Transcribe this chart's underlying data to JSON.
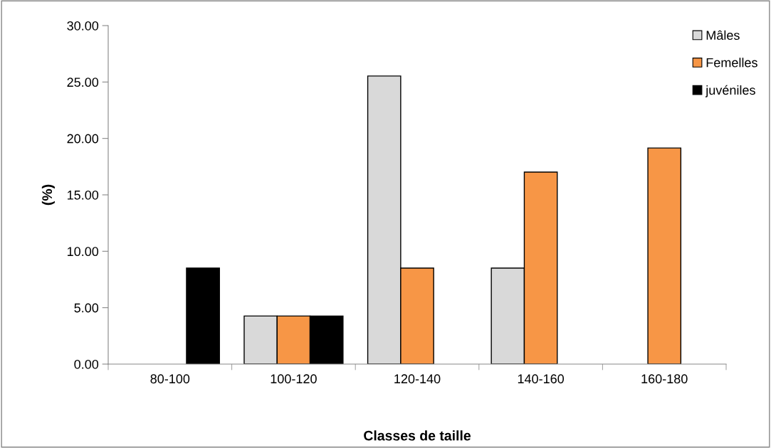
{
  "chart_data": {
    "type": "bar",
    "xlabel": "Classes de taille",
    "ylabel": "(%)",
    "categories": [
      "80-100",
      "100-120",
      "120-140",
      "140-160",
      "160-180"
    ],
    "series": [
      {
        "name": "Mâles",
        "color": "#d9d9d9",
        "values": [
          null,
          4.26,
          25.53,
          8.51,
          null
        ]
      },
      {
        "name": "Femelles",
        "color": "#f79646",
        "values": [
          null,
          4.26,
          8.51,
          17.02,
          19.15
        ]
      },
      {
        "name": "juvéniles",
        "color": "#000000",
        "values": [
          8.51,
          4.26,
          null,
          null,
          null
        ]
      }
    ],
    "ylim": [
      0,
      30
    ],
    "yticks": [
      {
        "value": 0,
        "label": "0.00"
      },
      {
        "value": 5,
        "label": "5.00"
      },
      {
        "value": 10,
        "label": "10.00"
      },
      {
        "value": 15,
        "label": "15.00"
      },
      {
        "value": 20,
        "label": "20.00"
      },
      {
        "value": 25,
        "label": "25.00"
      },
      {
        "value": 30,
        "label": "30.00"
      }
    ],
    "grid": false,
    "legend": "top right"
  }
}
